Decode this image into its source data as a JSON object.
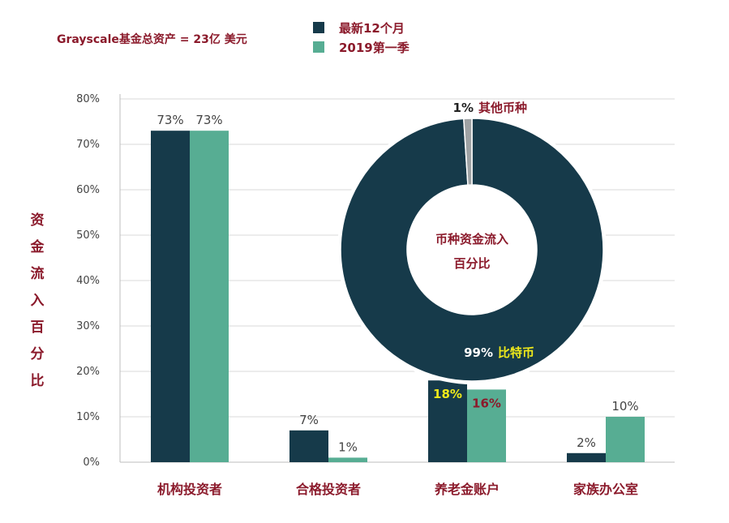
{
  "note": "Grayscale基金总资产 = 23亿 美元",
  "colors": {
    "dark": "#163a4a",
    "teal": "#57ad93",
    "gray": "#9ea2a4",
    "accent_text": "#8b1a2b",
    "highlight": "#f0ea1a",
    "axis_text": "#444444"
  },
  "chart_data": [
    {
      "type": "bar",
      "categories": [
        "机构投资者",
        "合格投资者",
        "养老金账户",
        "家族办公室"
      ],
      "series": [
        {
          "name": "最新12个月",
          "values": [
            73,
            7,
            18,
            2
          ],
          "labels": [
            "73%",
            "7%",
            "18%",
            "2%"
          ]
        },
        {
          "name": "2019第一季",
          "values": [
            73,
            1,
            16,
            10
          ],
          "labels": [
            "73%",
            "1%",
            "16%",
            "10%"
          ]
        }
      ],
      "ylabel": "资金流入百分比",
      "ylim": [
        0,
        80
      ],
      "yticks": [
        0,
        10,
        20,
        30,
        40,
        50,
        60,
        70,
        80
      ],
      "ytick_labels": [
        "0%",
        "10%",
        "20%",
        "30%",
        "40%",
        "50%",
        "60%",
        "70%",
        "80%"
      ],
      "grid": true,
      "legend": "top"
    },
    {
      "type": "pie",
      "style": "donut",
      "center_label": [
        "币种资金流入",
        "百分比"
      ],
      "slices": [
        {
          "label": "比特币",
          "value": 99,
          "value_label": "99%"
        },
        {
          "label": "其他币种",
          "value": 1,
          "value_label": "1%"
        }
      ]
    }
  ]
}
